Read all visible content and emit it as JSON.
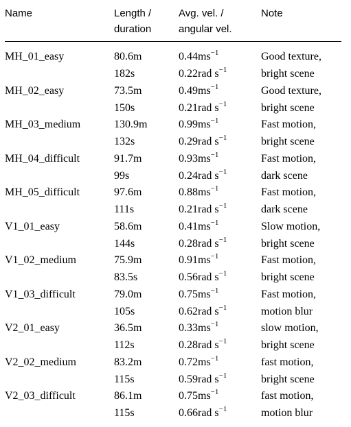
{
  "headers": {
    "name": "Name",
    "length_1": "Length /",
    "length_2": "duration",
    "vel_1": "Avg. vel. /",
    "vel_2": "angular vel.",
    "note": "Note"
  },
  "rows": [
    {
      "name": "MH_01_easy",
      "length": "80.6m",
      "duration": "182s",
      "vel": "0.44",
      "vel_unit": "ms",
      "ang": "0.22",
      "ang_unit": "rad s",
      "exp": "−1",
      "note1": "Good texture,",
      "note2": "bright scene"
    },
    {
      "name": "MH_02_easy",
      "length": "73.5m",
      "duration": "150s",
      "vel": "0.49",
      "vel_unit": "ms",
      "ang": "0.21",
      "ang_unit": "rad s",
      "exp": "−1",
      "note1": "Good texture,",
      "note2": "bright scene"
    },
    {
      "name": "MH_03_medium",
      "length": "130.9m",
      "duration": "132s",
      "vel": "0.99",
      "vel_unit": "ms",
      "ang": "0.29",
      "ang_unit": "rad s",
      "exp": "−1",
      "note1": "Fast motion,",
      "note2": "bright scene"
    },
    {
      "name": "MH_04_difficult",
      "length": "91.7m",
      "duration": "99s",
      "vel": "0.93",
      "vel_unit": "ms",
      "ang": "0.24",
      "ang_unit": "rad s",
      "exp": "−1",
      "note1": "Fast motion,",
      "note2": "dark scene"
    },
    {
      "name": "MH_05_difficult",
      "length": "97.6m",
      "duration": "111s",
      "vel": "0.88",
      "vel_unit": "ms",
      "ang": "0.21",
      "ang_unit": "rad s",
      "exp": "−1",
      "note1": "Fast motion,",
      "note2": "dark scene"
    },
    {
      "name": "V1_01_easy",
      "length": "58.6m",
      "duration": "144s",
      "vel": "0.41",
      "vel_unit": "ms",
      "ang": "0.28",
      "ang_unit": "rad s",
      "exp": "−1",
      "note1": "Slow motion,",
      "note2": "bright scene"
    },
    {
      "name": "V1_02_medium",
      "length": "75.9m",
      "duration": "83.5s",
      "vel": "0.91",
      "vel_unit": "ms",
      "ang": "0.56",
      "ang_unit": "rad s",
      "exp": "−1",
      "note1": "Fast motion,",
      "note2": "bright scene"
    },
    {
      "name": "V1_03_difficult",
      "length": "79.0m",
      "duration": "105s",
      "vel": "0.75",
      "vel_unit": "ms",
      "ang": "0.62",
      "ang_unit": "rad s",
      "exp": "−1",
      "note1": "Fast motion,",
      "note2": "motion blur"
    },
    {
      "name": "V2_01_easy",
      "length": "36.5m",
      "duration": "112s",
      "vel": "0.33",
      "vel_unit": "ms",
      "ang": "0.28",
      "ang_unit": "rad s",
      "exp": "−1",
      "note1": "slow motion,",
      "note2": "bright scene"
    },
    {
      "name": "V2_02_medium",
      "length": "83.2m",
      "duration": "115s",
      "vel": "0.72",
      "vel_unit": "ms",
      "ang": "0.59",
      "ang_unit": "rad s",
      "exp": "−1",
      "note1": "fast motion,",
      "note2": "bright scene"
    },
    {
      "name": "V2_03_difficult",
      "length": "86.1m",
      "duration": "115s",
      "vel": "0.75",
      "vel_unit": "ms",
      "ang": "0.66",
      "ang_unit": "rad s",
      "exp": "−1",
      "note1": "fast motion,",
      "note2": "motion blur"
    }
  ]
}
